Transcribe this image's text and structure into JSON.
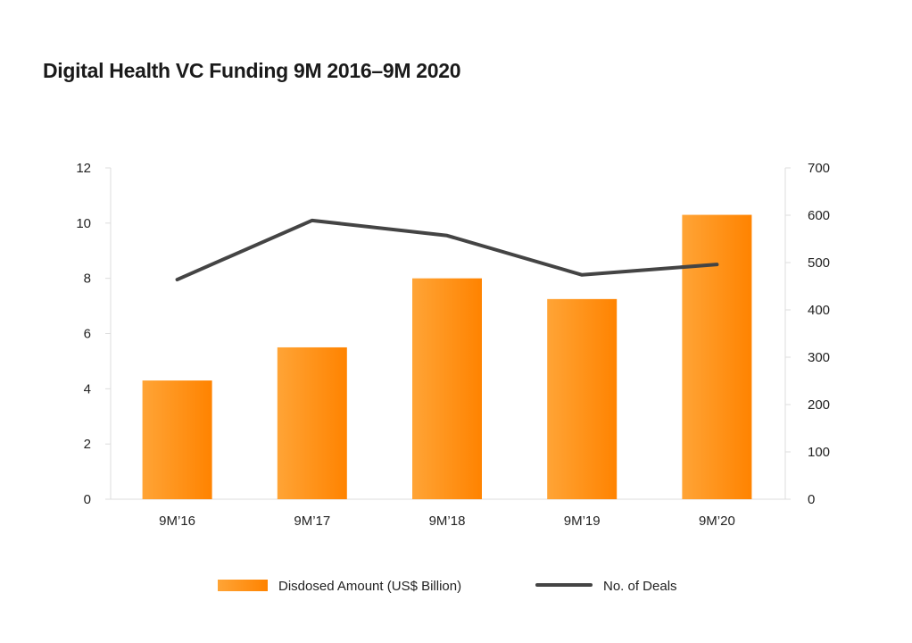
{
  "chart_data": {
    "type": "bar+line",
    "title": "Digital Health VC Funding 9M 2016–9M 2020",
    "categories": [
      "9M’16",
      "9M’17",
      "9M’18",
      "9M’19",
      "9M’20"
    ],
    "series": [
      {
        "name": "Disdosed Amount (US$ Billion)",
        "type": "bar",
        "axis": "left",
        "values": [
          4.3,
          5.5,
          8.0,
          7.25,
          10.3
        ],
        "color": "#ff8a00"
      },
      {
        "name": "No. of Deals",
        "type": "line",
        "axis": "right",
        "values": [
          464,
          589,
          557,
          474,
          496
        ],
        "color": "#444444"
      }
    ],
    "y_left": {
      "range": [
        0,
        12
      ],
      "ticks": [
        "0",
        "2",
        "4",
        "6",
        "8",
        "10",
        "12"
      ]
    },
    "y_right": {
      "range": [
        0,
        700
      ],
      "ticks": [
        "0",
        "100",
        "200",
        "300",
        "400",
        "500",
        "600",
        "700"
      ]
    },
    "grid": false,
    "legend_placement": "bottom"
  }
}
